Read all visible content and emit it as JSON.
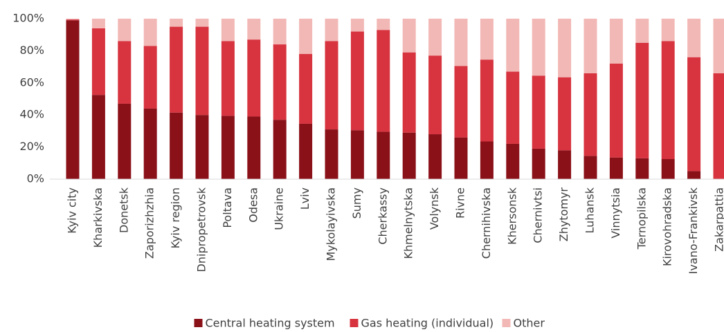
{
  "chart_data": {
    "type": "stacked_bar",
    "categories": [
      "Kyiv city",
      "Kharkivska",
      "Donetsk",
      "Zaporizhzhia",
      "Kyiv region",
      "Dnipropetrovsk",
      "Poltava",
      "Odesa",
      "Ukraine",
      "Lviv",
      "Mykolayivska",
      "Sumy",
      "Cherkassy",
      "Khmelnytska",
      "Volynsk",
      "Rivne",
      "Chernihivska",
      "Khersonsk",
      "Chernivtsi",
      "Zhytomyr",
      "Luhansk",
      "Vinnytsia",
      "Ternopilska",
      "Kirovohradska",
      "Ivano-Frankivsk",
      "Zakarpattia"
    ],
    "series": [
      {
        "name": "Central heating system",
        "color": "#8b1119",
        "values": [
          99,
          52.5,
          47,
          44,
          41.5,
          40,
          39.5,
          39,
          37,
          34.5,
          31,
          30.5,
          29.5,
          29,
          28,
          26,
          23.5,
          22,
          19,
          18,
          14.5,
          13.5,
          13,
          12.5,
          5,
          0
        ]
      },
      {
        "name": "Gas heating (individual)",
        "color": "#d7343f",
        "values": [
          0.5,
          41.5,
          39,
          39,
          53.5,
          55,
          46.5,
          48,
          47,
          43.5,
          55,
          61.5,
          63.5,
          50,
          49,
          44.5,
          51,
          45,
          45.5,
          45.5,
          51.5,
          58.5,
          72,
          73.5,
          71,
          66
        ]
      },
      {
        "name": "Other",
        "color": "#f2b8b6",
        "values": [
          0.5,
          6,
          14,
          17,
          5,
          5,
          14,
          13,
          16,
          22,
          14,
          8,
          7,
          21,
          23,
          29.5,
          25.5,
          33,
          35.5,
          36.5,
          34,
          28,
          15,
          14,
          24,
          34
        ]
      }
    ],
    "ylim": [
      0,
      100
    ],
    "yticks": [
      {
        "value": 0,
        "label": "0%"
      },
      {
        "value": 20,
        "label": "20%"
      },
      {
        "value": 40,
        "label": "40%"
      },
      {
        "value": 60,
        "label": "60%"
      },
      {
        "value": 80,
        "label": "80%"
      },
      {
        "value": 100,
        "label": "100%"
      }
    ],
    "grid": false,
    "legend": "bottom"
  }
}
